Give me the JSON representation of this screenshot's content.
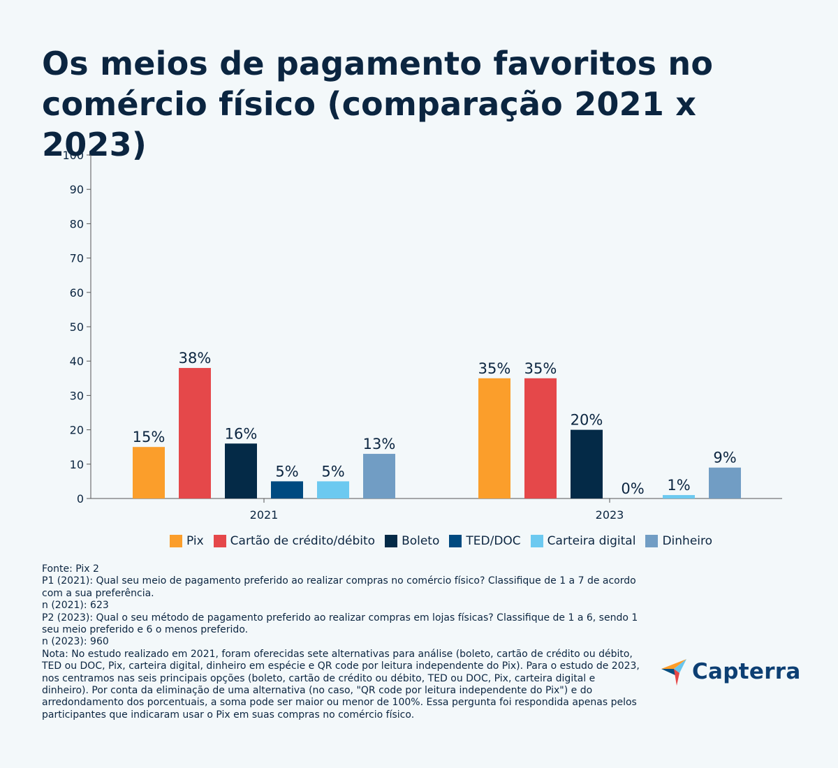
{
  "title_lines": [
    "Os meios de pagamento favoritos no",
    "comércio físico (comparação 2021 x 2023)"
  ],
  "chart_data": {
    "type": "bar",
    "categories": [
      "2021",
      "2023"
    ],
    "series": [
      {
        "name": "Pix",
        "color": "#fb9e2b",
        "values": [
          15,
          35
        ],
        "labels": [
          "15%",
          "35%"
        ]
      },
      {
        "name": "Cartão de crédito/débito",
        "color": "#e5484a",
        "values": [
          38,
          35
        ],
        "labels": [
          "38%",
          "35%"
        ]
      },
      {
        "name": "Boleto",
        "color": "#042a47",
        "values": [
          16,
          20
        ],
        "labels": [
          "16%",
          "20%"
        ]
      },
      {
        "name": "TED/DOC",
        "color": "#004a80",
        "values": [
          5,
          0
        ],
        "labels": [
          "5%",
          "0%"
        ]
      },
      {
        "name": "Carteira digital",
        "color": "#6cc9f0",
        "values": [
          5,
          1
        ],
        "labels": [
          "5%",
          "1%"
        ]
      },
      {
        "name": "Dinheiro",
        "color": "#719dc4",
        "values": [
          13,
          9
        ],
        "labels": [
          "13%",
          "9%"
        ]
      }
    ],
    "yticks": [
      "0",
      "10",
      "20",
      "30",
      "40",
      "50",
      "60",
      "70",
      "80",
      "90",
      "100"
    ],
    "ylim": [
      0,
      100
    ],
    "grid": false,
    "legend": "bottom"
  },
  "notes": [
    "Fonte: Pix 2",
    "P1 (2021): Qual seu meio de pagamento preferido ao realizar compras no comércio físico? Classifique de 1 a 7 de acordo com a sua preferência.",
    "n (2021): 623",
    "P2 (2023): Qual o seu método de pagamento preferido ao realizar compras em lojas físicas? Classifique de 1 a 6, sendo 1 seu meio preferido e 6 o menos preferido.",
    "n (2023): 960",
    "Nota: No estudo realizado em 2021, foram oferecidas sete alternativas para análise (boleto, cartão de crédito ou débito, TED ou DOC, Pix, carteira digital, dinheiro em espécie e QR code por leitura independente do Pix). Para o estudo de 2023, nos centramos nas seis principais opções (boleto, cartão de crédito ou débito, TED ou DOC, Pix, carteira digital e dinheiro). Por conta da eliminação de uma alternativa (no caso, \"QR code por leitura independente do Pix\") e do arredondamento dos porcentuais, a soma pode ser maior ou menor de 100%. Essa pergunta foi respondida apenas pelos participantes que indicaram usar o Pix em suas compras no comércio físico."
  ],
  "logo": {
    "text": "Capterra",
    "icon": "capterra-arrow-icon"
  }
}
